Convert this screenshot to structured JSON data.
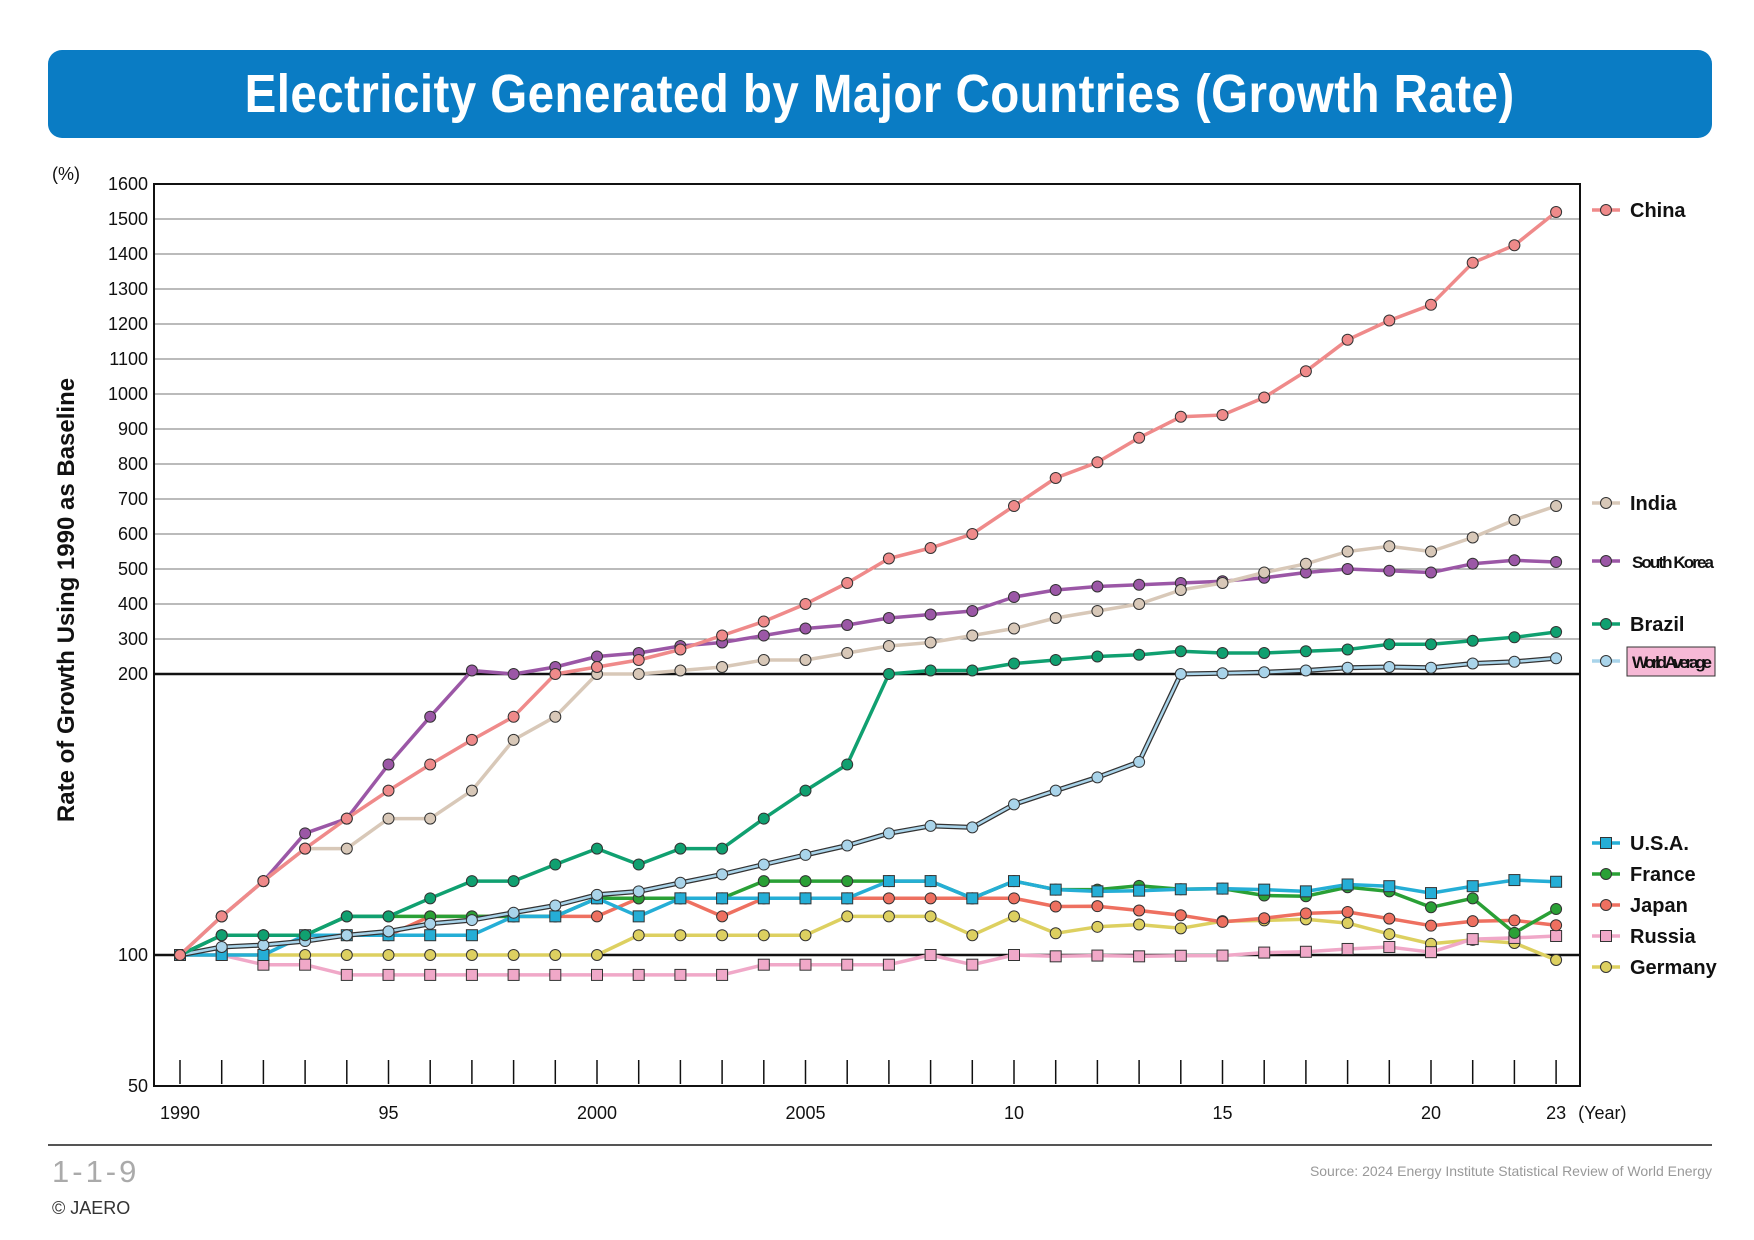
{
  "header": {
    "title": "Electricity Generated by Major Countries (Growth Rate)"
  },
  "footer": {
    "figure_number": "1-1-9",
    "copyright": "© JAERO",
    "source": "Source: 2024 Energy Institute Statistical Review of World Energy"
  },
  "chart_data": {
    "type": "line",
    "title": "Electricity Generated by Major Countries (Growth Rate)",
    "ylabel": "Rate of Growth Using 1990 as Baseline",
    "yunit": "(%)",
    "xunit": "(Year)",
    "y_scale": "piecewise: 50–100 and 100–200 log-like segments, 200–1600 linear",
    "ylim": [
      50,
      1600
    ],
    "yticks": [
      "50",
      "100",
      "200",
      "300",
      "400",
      "500",
      "600",
      "700",
      "800",
      "900",
      "1000",
      "1100",
      "1200",
      "1300",
      "1400",
      "1500",
      "1600"
    ],
    "xticks": [
      "1990",
      "95",
      "2000",
      "2005",
      "10",
      "15",
      "20",
      "23"
    ],
    "grid": "horizontal lines from 200 to 1600; bold lines at 100 and 200",
    "legend_position": "right",
    "x": [
      1990,
      1991,
      1992,
      1993,
      1994,
      1995,
      1996,
      1997,
      1998,
      1999,
      2000,
      2001,
      2002,
      2003,
      2004,
      2005,
      2006,
      2007,
      2008,
      2009,
      2010,
      2011,
      2012,
      2013,
      2014,
      2015,
      2016,
      2017,
      2018,
      2019,
      2020,
      2021,
      2022,
      2023
    ],
    "series": [
      {
        "name": "China",
        "color": "#ef8a8a",
        "marker": "circle",
        "legend_boxed": false,
        "values": [
          100,
          110,
          120,
          130,
          140,
          150,
          160,
          170,
          180,
          200,
          220,
          240,
          270,
          310,
          350,
          400,
          460,
          530,
          560,
          600,
          680,
          760,
          805,
          875,
          935,
          940,
          990,
          1065,
          1155,
          1210,
          1255,
          1375,
          1425,
          1520
        ]
      },
      {
        "name": "India",
        "color": "#d8c8b8",
        "marker": "circle",
        "legend_boxed": false,
        "values": [
          100,
          110,
          120,
          130,
          130,
          140,
          140,
          150,
          170,
          180,
          200,
          200,
          210,
          220,
          240,
          240,
          260,
          280,
          290,
          310,
          330,
          360,
          380,
          400,
          440,
          460,
          490,
          515,
          550,
          565,
          550,
          590,
          640,
          680
        ]
      },
      {
        "name": "South Korea",
        "color": "#9b57a6",
        "marker": "circle",
        "legend_boxed": false,
        "values": [
          100,
          110,
          120,
          135,
          140,
          160,
          180,
          210,
          200,
          220,
          250,
          260,
          280,
          290,
          310,
          330,
          340,
          360,
          370,
          380,
          420,
          440,
          450,
          455,
          460,
          465,
          475,
          490,
          500,
          495,
          490,
          515,
          525,
          520
        ]
      },
      {
        "name": "Brazil",
        "color": "#10a070",
        "marker": "circle",
        "legend_boxed": false,
        "values": [
          100,
          105,
          105,
          105,
          110,
          110,
          115,
          120,
          120,
          125,
          130,
          125,
          130,
          130,
          140,
          150,
          160,
          200,
          210,
          210,
          230,
          240,
          250,
          255,
          265,
          260,
          260,
          265,
          270,
          285,
          285,
          295,
          305,
          320
        ]
      },
      {
        "name": "World Average",
        "color": "#a9d4ea",
        "marker": "circle",
        "legend_boxed": true,
        "values": [
          100,
          102,
          102.5,
          103.5,
          105,
          106,
          108,
          109,
          111,
          113,
          116,
          117,
          119.5,
          122,
          125,
          128,
          131,
          135,
          137.5,
          137,
          145,
          150,
          155,
          161,
          200,
          202,
          205,
          210,
          218,
          220,
          218,
          230,
          235,
          245
        ]
      },
      {
        "name": "U.S.A.",
        "color": "#25aed6",
        "marker": "square",
        "legend_boxed": false,
        "values": [
          100,
          100,
          100,
          105,
          105,
          105,
          105,
          105,
          110,
          110,
          115,
          110,
          115,
          115,
          115,
          115,
          115,
          120,
          120,
          115,
          120,
          117.5,
          117,
          117.2,
          117.6,
          117.8,
          117.5,
          117,
          119,
          118.5,
          116.5,
          118.5,
          120.3,
          119.8
        ]
      },
      {
        "name": "France",
        "color": "#2aa036",
        "marker": "circle",
        "legend_boxed": false,
        "values": [
          100,
          105,
          105,
          105,
          110,
          110,
          110,
          110,
          110,
          110,
          115,
          115,
          115,
          115,
          120,
          120,
          120,
          120,
          120,
          115,
          120,
          117.5,
          117.5,
          118.6,
          117.6,
          117.8,
          115.8,
          115.6,
          118.2,
          117,
          112.5,
          115,
          105.6,
          112
        ]
      },
      {
        "name": "Japan",
        "color": "#ee7060",
        "marker": "circle",
        "legend_boxed": false,
        "values": [
          100,
          105,
          105,
          105,
          105,
          105,
          110,
          110,
          110,
          110,
          110,
          115,
          115,
          110,
          115,
          115,
          115,
          115,
          115,
          115,
          115,
          112.7,
          112.8,
          111.6,
          110.3,
          108.5,
          109.5,
          110.8,
          111.2,
          109.4,
          107.5,
          108.7,
          108.9,
          107.6
        ]
      },
      {
        "name": "Russia",
        "color": "#f0a8c8",
        "marker": "square",
        "legend_boxed": false,
        "values": [
          100,
          100,
          95,
          95,
          90,
          90,
          90,
          90,
          90,
          90,
          90,
          90,
          90,
          90,
          95,
          95,
          95,
          95,
          100,
          95,
          100,
          99.3,
          99.7,
          99.3,
          99.6,
          99.7,
          100.6,
          100.8,
          101.5,
          102,
          100.7,
          104,
          104.3,
          104.8
        ]
      },
      {
        "name": "Germany",
        "color": "#ddd060",
        "marker": "circle",
        "legend_boxed": false,
        "values": [
          100,
          100,
          100,
          100,
          100,
          100,
          100,
          100,
          100,
          100,
          100,
          105,
          105,
          105,
          105,
          105,
          110,
          110,
          110,
          105,
          110,
          105.5,
          107.2,
          107.8,
          106.8,
          108.7,
          108.9,
          109.2,
          108.2,
          105.3,
          102.8,
          103.8,
          103,
          97.4
        ]
      }
    ]
  }
}
